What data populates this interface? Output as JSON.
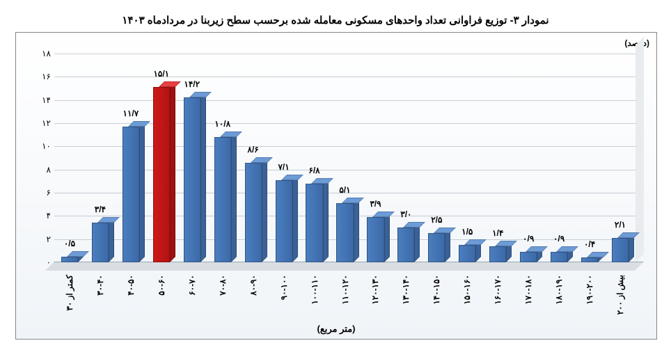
{
  "chart": {
    "type": "bar",
    "title": "نمودار ۳- توزیع فراوانی تعداد واحدهای مسکونی معامله شده برحسب سطح زیربنا در مردادماه ۱۴۰۳",
    "y_axis_label": "(درصد)",
    "x_axis_label": "(متر مربع)",
    "ylim": [
      0,
      18
    ],
    "ytick_step": 2,
    "yticks": [
      "۰",
      "۲",
      "۴",
      "۶",
      "۸",
      "۱۰",
      "۱۲",
      "۱۴",
      "۱۶",
      "۱۸"
    ],
    "bar_color": "#4a7ebf",
    "bar_color_top": "#6c9bd6",
    "bar_color_side": "#3a6298",
    "highlight_color": "#d01818",
    "highlight_top": "#e84040",
    "highlight_side": "#a01010",
    "background": "#ffffff",
    "grid_color": "#9aa7b0",
    "border_color": "#868686",
    "title_fontsize": 15,
    "label_fontsize": 13,
    "tick_fontsize": 12,
    "categories": [
      "کمتر از ۳۰",
      "۳۰-۴۰",
      "۴۰-۵۰",
      "۵۰-۶۰",
      "۶۰-۷۰",
      "۷۰-۸۰",
      "۸۰-۹۰",
      "۹۰-۱۰۰",
      "۱۰۰-۱۱۰",
      "۱۱۰-۱۲۰",
      "۱۲۰-۱۳۰",
      "۱۳۰-۱۴۰",
      "۱۴۰-۱۵۰",
      "۱۵۰-۱۶۰",
      "۱۶۰-۱۷۰",
      "۱۷۰-۱۸۰",
      "۱۸۰-۱۹۰",
      "۱۹۰-۲۰۰",
      "بیش از ۲۰۰"
    ],
    "values": [
      0.5,
      3.4,
      11.7,
      15.1,
      14.2,
      10.8,
      8.6,
      7.1,
      6.8,
      5.1,
      3.9,
      3.0,
      2.5,
      1.5,
      1.4,
      0.9,
      0.9,
      0.4,
      2.1
    ],
    "value_labels": [
      "۰/۵",
      "۳/۴",
      "۱۱/۷",
      "۱۵/۱",
      "۱۴/۲",
      "۱۰/۸",
      "۸/۶",
      "۷/۱",
      "۶/۸",
      "۵/۱",
      "۳/۹",
      "۳/۰",
      "۲/۵",
      "۱/۵",
      "۱/۴",
      "۰/۹",
      "۰/۹",
      "۰/۴",
      "۲/۱"
    ],
    "highlight_index": 3,
    "bar_width_ratio": 0.55
  }
}
